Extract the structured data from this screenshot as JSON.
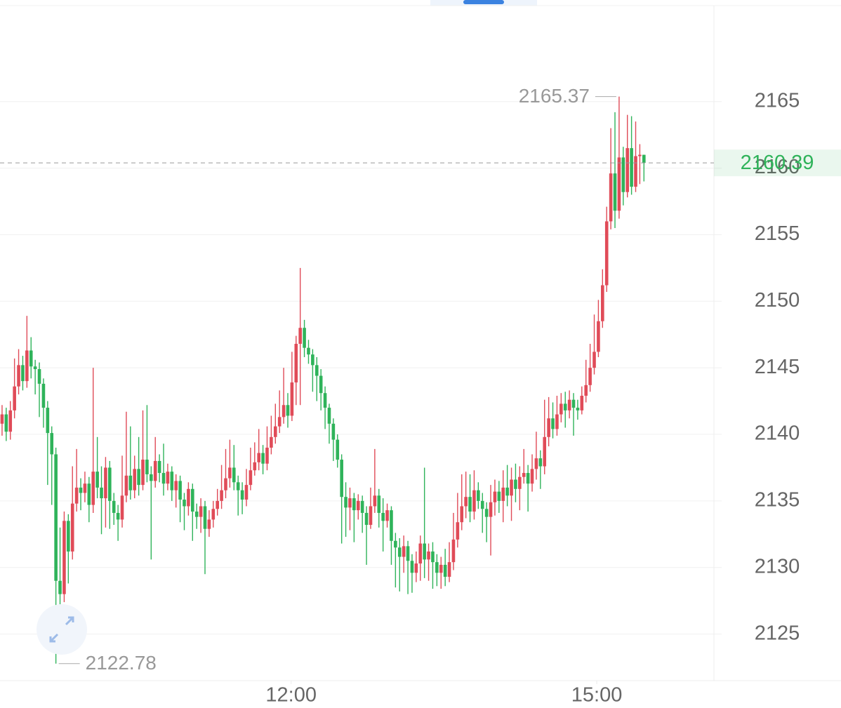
{
  "chart_data": {
    "type": "candlestick",
    "up_color": "#e04b58",
    "down_color": "#2fb35a",
    "last_price_color": "#2fb35a",
    "ylim": [
      2121.5,
      2172.1
    ],
    "yticks": [
      2125,
      2130,
      2135,
      2140,
      2145,
      2150,
      2155,
      2160,
      2165
    ],
    "xlim": [
      -0.5,
      171.9
    ],
    "xticks": [
      {
        "value": 69.8,
        "label": "12:00"
      },
      {
        "value": 143.6,
        "label": "15:00"
      }
    ],
    "grid": true,
    "open": [
      2140.8,
      2141.5,
      2140.2,
      2141.8,
      2143.6,
      2145.2,
      2144.0,
      2146.3,
      2145.1,
      2144.9,
      2143.8,
      2142.0,
      2140.1,
      2138.5,
      2129.0,
      2128.0,
      2133.5,
      2131.2,
      2134.8,
      2136.0,
      2135.6,
      2136.3,
      2134.7,
      2137.2,
      2136.0,
      2135.2,
      2137.5,
      2135.0,
      2134.1,
      2133.6,
      2135.4,
      2136.9,
      2135.8,
      2137.4,
      2136.2,
      2138.1,
      2137.0,
      2136.5,
      2138.0,
      2137.1,
      2136.3,
      2137.2,
      2135.8,
      2136.5,
      2135.1,
      2134.6,
      2135.9,
      2134.2,
      2133.8,
      2134.6,
      2132.9,
      2133.6,
      2134.4,
      2135.0,
      2135.8,
      2136.7,
      2137.5,
      2136.4,
      2135.8,
      2135.1,
      2136.2,
      2137.3,
      2137.9,
      2138.6,
      2137.8,
      2139.0,
      2139.8,
      2140.6,
      2141.3,
      2142.2,
      2141.4,
      2143.9,
      2146.8,
      2148.0,
      2146.5,
      2146.0,
      2145.2,
      2144.4,
      2143.1,
      2142.0,
      2140.8,
      2139.6,
      2138.1,
      2135.3,
      2134.5,
      2135.2,
      2134.3,
      2135.0,
      2134.1,
      2133.2,
      2134.6,
      2135.4,
      2134.1,
      2133.5,
      2134.3,
      2132.0,
      2131.5,
      2130.8,
      2131.6,
      2130.5,
      2129.6,
      2130.3,
      2131.8,
      2130.6,
      2131.2,
      2130.4,
      2129.6,
      2130.2,
      2129.3,
      2130.4,
      2132.1,
      2133.4,
      2134.6,
      2135.3,
      2134.2,
      2135.8,
      2135.0,
      2134.4,
      2133.8,
      2134.9,
      2135.7,
      2135.0,
      2136.0,
      2135.4,
      2136.6,
      2135.9,
      2136.8,
      2137.1,
      2136.3,
      2137.4,
      2138.2,
      2137.6,
      2139.8,
      2141.2,
      2140.4,
      2141.5,
      2142.3,
      2141.8,
      2142.6,
      2142.0,
      2141.8,
      2142.9,
      2143.7,
      2145.0,
      2146.2,
      2148.5,
      2151.2,
      2156.0,
      2159.6,
      2156.8,
      2160.8,
      2158.2,
      2161.5,
      2158.6,
      2160.9,
      2161.0
    ],
    "high": [
      2142.2,
      2142.0,
      2142.5,
      2145.7,
      2146.4,
      2145.9,
      2148.9,
      2147.3,
      2145.6,
      2145.4,
      2144.2,
      2142.5,
      2140.6,
      2139.0,
      2133.0,
      2134.2,
      2134.0,
      2137.6,
      2138.9,
      2136.7,
      2137.2,
      2136.8,
      2145.0,
      2139.8,
      2137.6,
      2138.3,
      2138.0,
      2135.6,
      2134.7,
      2138.4,
      2141.7,
      2140.6,
      2138.4,
      2139.8,
      2141.8,
      2142.2,
      2137.6,
      2139.8,
      2138.5,
      2139.3,
      2137.8,
      2137.6,
      2137.0,
      2136.9,
      2135.6,
      2136.4,
      2136.3,
      2134.8,
      2135.2,
      2135.0,
      2134.3,
      2135.0,
      2135.9,
      2137.7,
      2138.9,
      2139.6,
      2139.2,
      2136.9,
      2136.4,
      2137.4,
      2139.0,
      2139.4,
      2140.4,
      2139.2,
      2140.6,
      2141.4,
      2142.3,
      2143.3,
      2145.0,
      2143.1,
      2146.2,
      2147.4,
      2152.5,
      2148.6,
      2147.1,
      2146.4,
      2145.8,
      2144.9,
      2143.6,
      2142.3,
      2141.2,
      2140.0,
      2138.5,
      2136.4,
      2136.0,
      2135.6,
      2135.5,
      2135.4,
      2134.6,
      2136.0,
      2138.9,
      2135.9,
      2135.2,
      2134.8,
      2134.6,
      2132.6,
      2132.2,
      2132.4,
      2132.0,
      2131.0,
      2131.2,
      2132.4,
      2137.5,
      2131.8,
      2131.9,
      2131.0,
      2130.8,
      2131.4,
      2131.9,
      2134.1,
      2135.6,
      2137.0,
      2137.2,
      2137.0,
      2137.3,
      2136.4,
      2135.6,
      2134.9,
      2136.2,
      2136.6,
      2136.5,
      2137.3,
      2137.7,
      2137.5,
      2137.8,
      2137.6,
      2138.9,
      2137.7,
      2138.5,
      2140.2,
      2138.8,
      2142.6,
      2142.8,
      2142.4,
      2142.9,
      2143.1,
      2143.2,
      2143.3,
      2143.1,
      2142.6,
      2143.6,
      2145.6,
      2146.8,
      2149.0,
      2150.1,
      2152.4,
      2157.1,
      2163.0,
      2164.2,
      2165.37,
      2161.6,
      2164.0,
      2163.9,
      2163.5,
      2161.8,
      2161.0
    ],
    "low": [
      2139.9,
      2139.5,
      2139.6,
      2141.2,
      2143.0,
      2143.3,
      2143.5,
      2144.2,
      2143.0,
      2141.3,
      2140.5,
      2136.2,
      2134.7,
      2122.78,
      2127.2,
      2127.4,
      2128.8,
      2130.6,
      2134.2,
      2134.3,
      2134.9,
      2133.4,
      2134.1,
      2135.2,
      2132.5,
      2133.0,
      2132.9,
      2133.2,
      2132.0,
      2133.0,
      2134.9,
      2135.1,
      2135.2,
      2135.4,
      2135.8,
      2136.4,
      2130.6,
      2136.0,
      2136.4,
      2135.4,
      2135.8,
      2135.0,
      2134.5,
      2133.4,
      2132.8,
      2133.9,
      2132.0,
      2132.9,
      2132.6,
      2129.5,
      2132.3,
      2133.0,
      2133.9,
      2134.4,
      2135.2,
      2136.0,
      2135.8,
      2133.9,
      2134.0,
      2134.6,
      2135.8,
      2136.9,
      2137.3,
      2137.0,
      2137.3,
      2138.5,
      2139.3,
      2140.1,
      2140.8,
      2140.5,
      2141.0,
      2142.2,
      2142.2,
      2145.8,
      2145.3,
      2143.2,
      2142.5,
      2141.8,
      2140.4,
      2139.3,
      2138.0,
      2137.5,
      2131.8,
      2132.3,
      2132.8,
      2131.9,
      2133.6,
      2132.6,
      2130.2,
      2132.9,
      2134.1,
      2133.0,
      2131.2,
      2133.0,
      2130.2,
      2128.5,
      2128.2,
      2129.6,
      2128.0,
      2128.1,
      2128.9,
      2129.0,
      2129.2,
      2129.0,
      2128.4,
      2128.6,
      2128.4,
      2128.6,
      2128.9,
      2129.8,
      2131.5,
      2132.8,
      2133.7,
      2133.4,
      2133.6,
      2134.4,
      2132.6,
      2131.9,
      2130.9,
      2133.9,
      2134.1,
      2133.4,
      2134.6,
      2133.5,
      2134.9,
      2134.3,
      2136.3,
      2134.2,
      2135.7,
      2136.6,
      2135.9,
      2137.0,
      2139.1,
      2139.7,
      2139.9,
      2140.9,
      2140.5,
      2141.2,
      2139.9,
      2141.1,
      2141.5,
      2142.4,
      2143.2,
      2144.5,
      2145.8,
      2148.0,
      2150.7,
      2155.4,
      2155.5,
      2156.2,
      2157.2,
      2157.8,
      2158.0,
      2158.2,
      2158.8,
      2159.0
    ],
    "close": [
      2141.5,
      2140.2,
      2141.8,
      2143.6,
      2145.2,
      2144.0,
      2146.3,
      2145.1,
      2144.9,
      2143.8,
      2142.0,
      2140.1,
      2138.5,
      2129.0,
      2128.0,
      2133.5,
      2131.2,
      2134.8,
      2136.0,
      2135.6,
      2136.3,
      2134.7,
      2137.2,
      2136.0,
      2135.2,
      2137.5,
      2135.0,
      2134.1,
      2133.6,
      2135.4,
      2136.9,
      2135.8,
      2137.4,
      2136.2,
      2138.1,
      2137.0,
      2136.5,
      2138.0,
      2137.1,
      2136.3,
      2137.2,
      2135.8,
      2136.5,
      2135.1,
      2134.6,
      2135.9,
      2134.2,
      2133.8,
      2134.6,
      2132.9,
      2133.6,
      2134.4,
      2135.0,
      2135.8,
      2136.7,
      2137.5,
      2136.4,
      2135.8,
      2135.1,
      2136.2,
      2137.3,
      2137.9,
      2138.6,
      2137.8,
      2139.0,
      2139.8,
      2140.6,
      2141.3,
      2142.2,
      2141.4,
      2143.9,
      2146.8,
      2148.0,
      2146.5,
      2146.0,
      2145.2,
      2144.4,
      2143.1,
      2142.0,
      2140.8,
      2139.6,
      2138.1,
      2135.3,
      2134.5,
      2135.2,
      2134.3,
      2135.0,
      2134.1,
      2133.2,
      2134.6,
      2135.4,
      2134.1,
      2133.5,
      2134.3,
      2132.0,
      2131.5,
      2130.8,
      2131.6,
      2130.5,
      2129.6,
      2130.3,
      2131.8,
      2130.6,
      2131.2,
      2130.4,
      2129.6,
      2130.2,
      2129.3,
      2130.4,
      2132.1,
      2133.4,
      2134.6,
      2135.3,
      2134.2,
      2135.8,
      2135.0,
      2134.4,
      2133.8,
      2134.9,
      2135.7,
      2135.0,
      2136.0,
      2135.4,
      2136.6,
      2135.9,
      2136.8,
      2137.1,
      2136.3,
      2137.4,
      2138.2,
      2137.6,
      2139.8,
      2141.2,
      2140.4,
      2141.5,
      2142.3,
      2141.8,
      2142.6,
      2142.0,
      2141.8,
      2142.9,
      2143.7,
      2145.0,
      2146.2,
      2148.5,
      2151.2,
      2156.0,
      2159.6,
      2156.8,
      2160.8,
      2158.2,
      2161.5,
      2158.6,
      2160.9,
      2161.0,
      2160.39
    ]
  }
}
